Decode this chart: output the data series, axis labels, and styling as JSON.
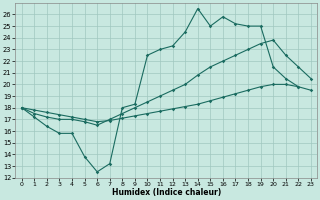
{
  "xlabel": "Humidex (Indice chaleur)",
  "bg_color": "#c8e8e0",
  "grid_color": "#a0c8c0",
  "line_color": "#1a6b60",
  "xlim": [
    -0.5,
    23.5
  ],
  "ylim": [
    12,
    27
  ],
  "yticks": [
    12,
    13,
    14,
    15,
    16,
    17,
    18,
    19,
    20,
    21,
    22,
    23,
    24,
    25,
    26
  ],
  "xticks": [
    0,
    1,
    2,
    3,
    4,
    5,
    6,
    7,
    8,
    9,
    10,
    11,
    12,
    13,
    14,
    15,
    16,
    17,
    18,
    19,
    20,
    21,
    22,
    23
  ],
  "line1_x": [
    0,
    1,
    2,
    3,
    4,
    5,
    6,
    7,
    8,
    9,
    10,
    11,
    12,
    13,
    14,
    15,
    16,
    17,
    18,
    19,
    20,
    21,
    22
  ],
  "line1_y": [
    18.0,
    17.2,
    16.4,
    15.8,
    15.8,
    13.8,
    12.5,
    13.2,
    18.0,
    18.3,
    22.5,
    23.0,
    23.3,
    24.5,
    26.5,
    25.0,
    25.8,
    25.2,
    25.0,
    25.0,
    21.5,
    20.5,
    19.8
  ],
  "line2_x": [
    0,
    1,
    2,
    3,
    4,
    5,
    6,
    7,
    8,
    9,
    10,
    11,
    12,
    13,
    14,
    15,
    16,
    17,
    18,
    19,
    20,
    21,
    22,
    23
  ],
  "line2_y": [
    18.0,
    17.5,
    17.2,
    17.0,
    17.0,
    16.8,
    16.5,
    17.0,
    17.5,
    18.0,
    18.5,
    19.0,
    19.5,
    20.0,
    20.8,
    21.5,
    22.0,
    22.5,
    23.0,
    23.5,
    23.8,
    22.5,
    21.5,
    20.5
  ],
  "line3_x": [
    0,
    1,
    2,
    3,
    4,
    5,
    6,
    7,
    8,
    9,
    10,
    11,
    12,
    13,
    14,
    15,
    16,
    17,
    18,
    19,
    20,
    21,
    22,
    23
  ],
  "line3_y": [
    18.0,
    17.8,
    17.6,
    17.4,
    17.2,
    17.0,
    16.8,
    16.9,
    17.1,
    17.3,
    17.5,
    17.7,
    17.9,
    18.1,
    18.3,
    18.6,
    18.9,
    19.2,
    19.5,
    19.8,
    20.0,
    20.0,
    19.8,
    19.5
  ]
}
